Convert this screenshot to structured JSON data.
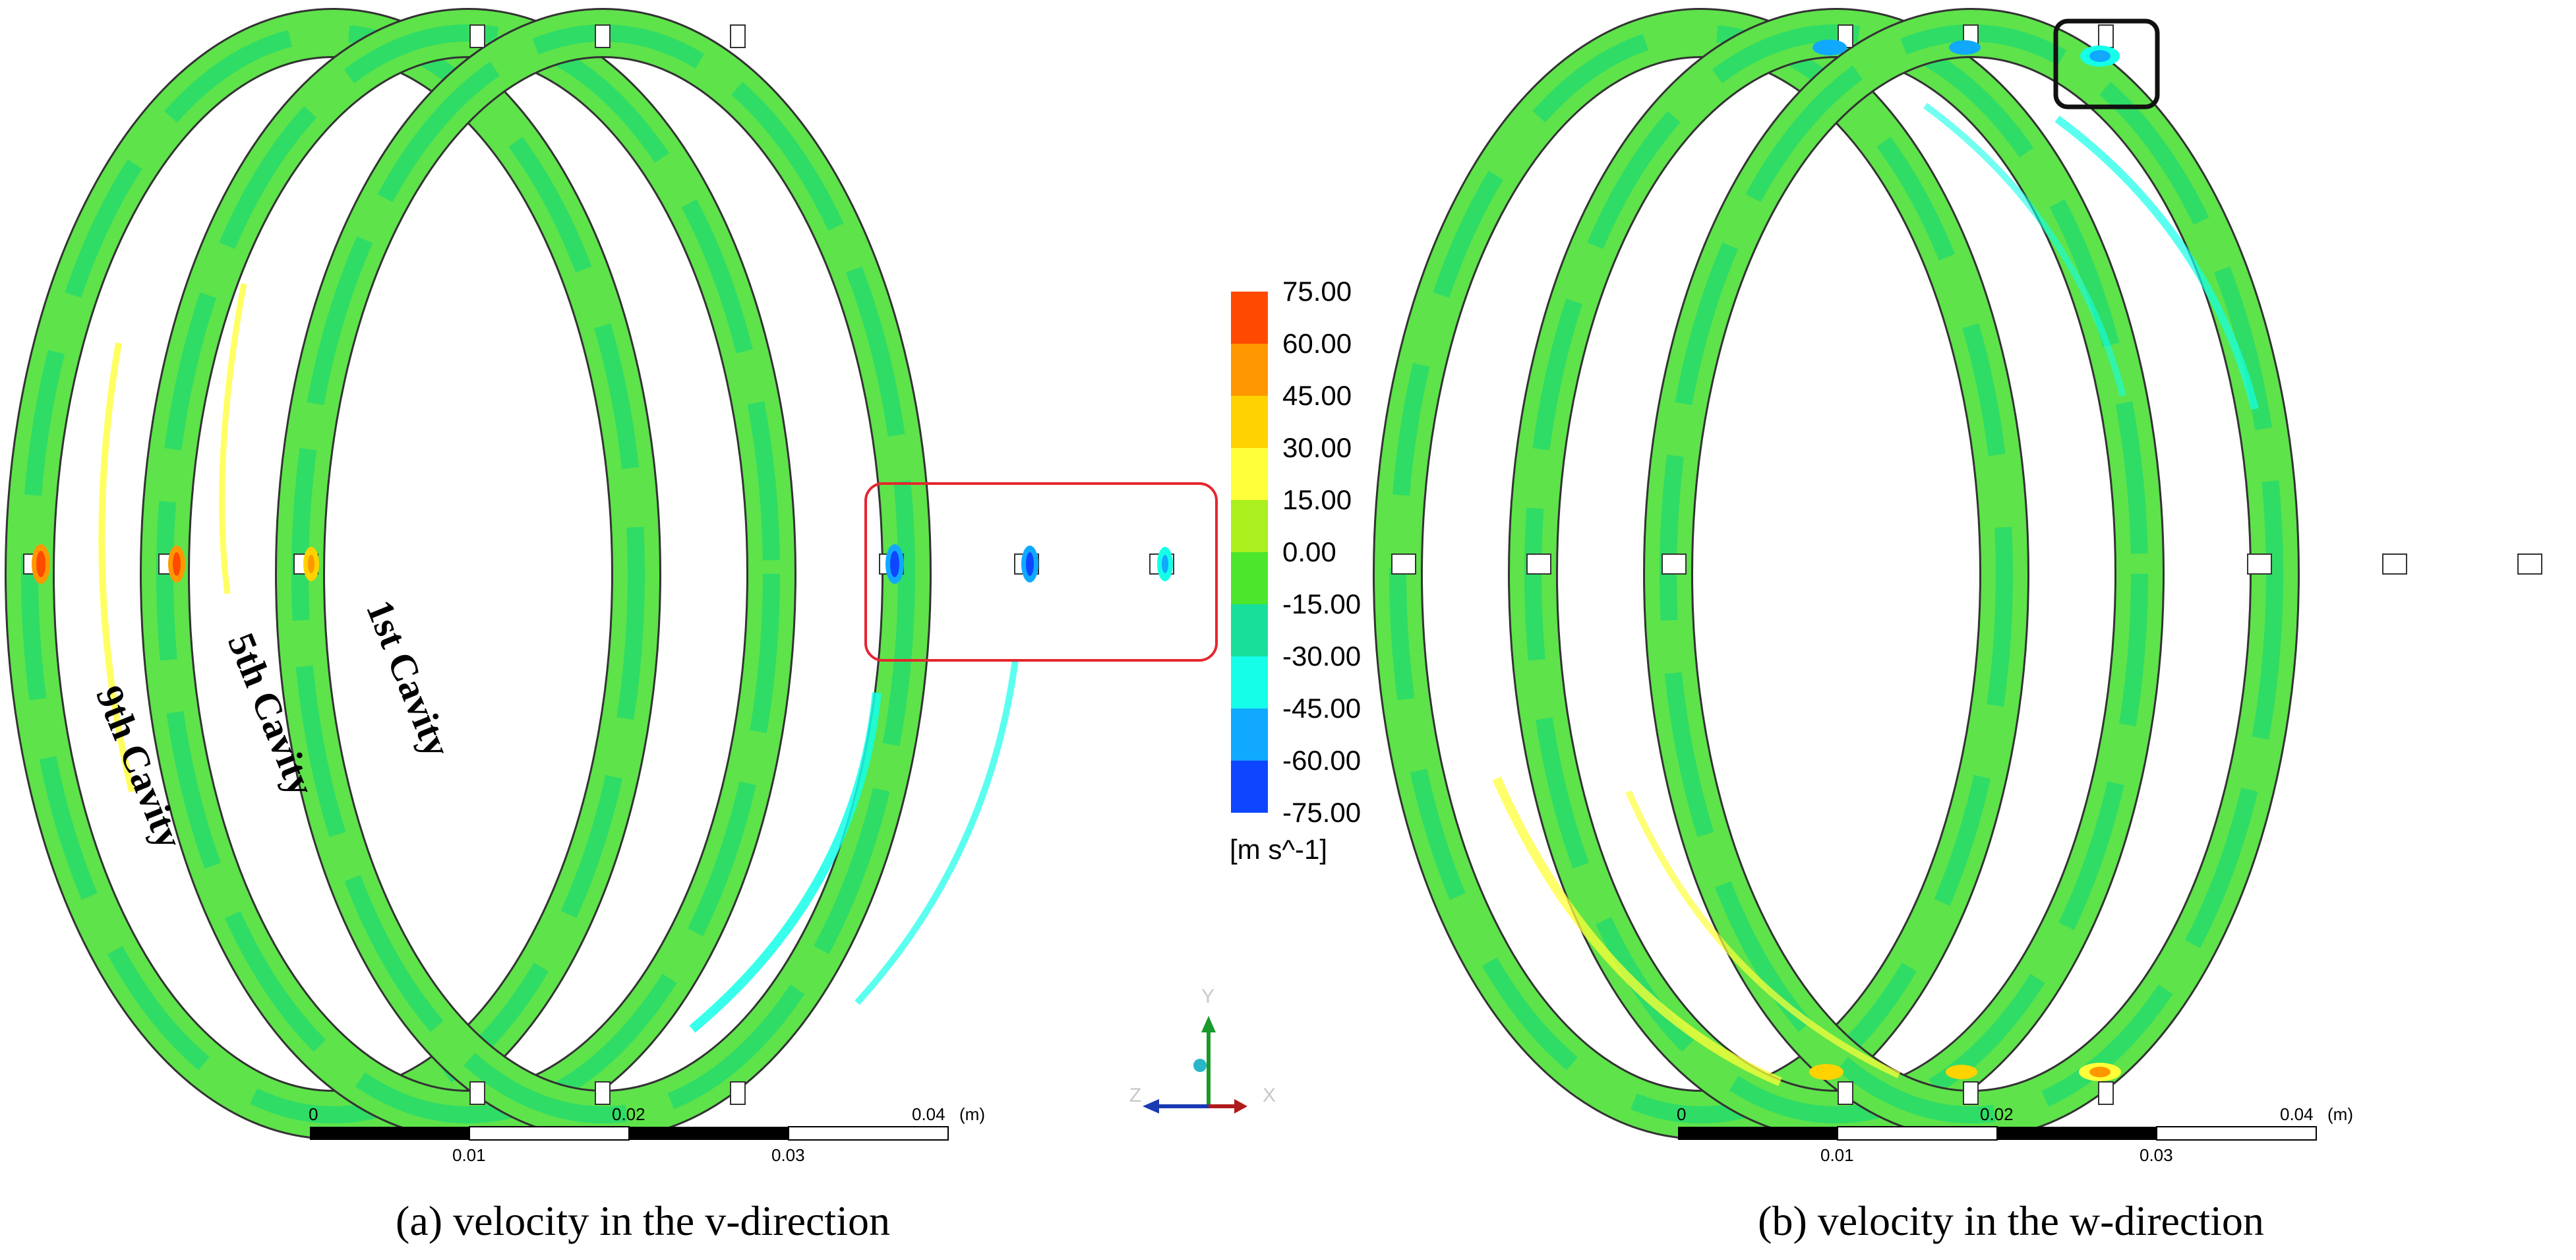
{
  "panel_a": {
    "caption": "(a) velocity in the v-direction",
    "cavity_labels": [
      "9th Cavity",
      "5th Cavity",
      "1st Cavity"
    ]
  },
  "panel_b": {
    "caption": "(b) velocity in the w-direction"
  },
  "legend": {
    "values": [
      "75.00",
      "60.00",
      "45.00",
      "30.00",
      "15.00",
      "0.00",
      "-15.00",
      "-30.00",
      "-45.00",
      "-60.00",
      "-75.00"
    ],
    "colors": [
      "#ff4a00",
      "#ff9800",
      "#ffd200",
      "#ffff3a",
      "#a9f01e",
      "#4ce62c",
      "#18e09a",
      "#15ffe8",
      "#10a9ff",
      "#0e46ff"
    ],
    "unit": "[m s^-1]"
  },
  "scale_bar": {
    "top_labels": [
      "0",
      "0.02",
      "0.04"
    ],
    "unit": "(m)",
    "bottom_labels": [
      "0.01",
      "0.03"
    ]
  },
  "axis_triad": {
    "y": "Y",
    "z": "Z",
    "x": "X"
  },
  "colors": {
    "ring_green": "#5ee34a",
    "ring_inner": "#2fdc66",
    "highlight_red": "#e4272e",
    "highlight_black": "#111111"
  }
}
